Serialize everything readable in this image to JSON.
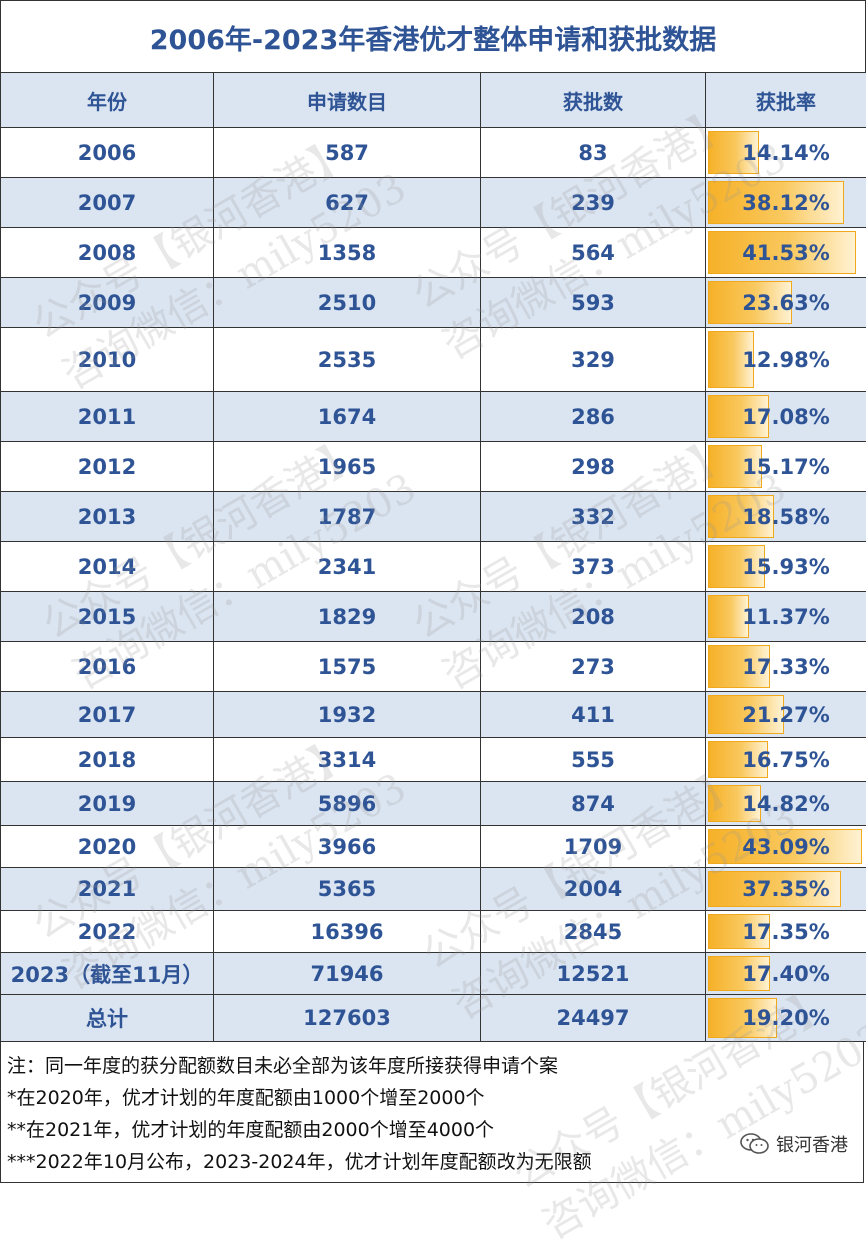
{
  "title": "2006年-2023年香港优才整体申请和获批数据",
  "headers": [
    "年份",
    "申请数目",
    "获批数",
    "获批率"
  ],
  "rows": [
    {
      "year": "2006",
      "applications": "587",
      "approved": "83",
      "rate": "14.14%",
      "rate_value": 14.14
    },
    {
      "year": "2007",
      "applications": "627",
      "approved": "239",
      "rate": "38.12%",
      "rate_value": 38.12
    },
    {
      "year": "2008",
      "applications": "1358",
      "approved": "564",
      "rate": "41.53%",
      "rate_value": 41.53
    },
    {
      "year": "2009",
      "applications": "2510",
      "approved": "593",
      "rate": "23.63%",
      "rate_value": 23.63
    },
    {
      "year": "2010",
      "applications": "2535",
      "approved": "329",
      "rate": "12.98%",
      "rate_value": 12.98
    },
    {
      "year": "2011",
      "applications": "1674",
      "approved": "286",
      "rate": "17.08%",
      "rate_value": 17.08
    },
    {
      "year": "2012",
      "applications": "1965",
      "approved": "298",
      "rate": "15.17%",
      "rate_value": 15.17
    },
    {
      "year": "2013",
      "applications": "1787",
      "approved": "332",
      "rate": "18.58%",
      "rate_value": 18.58
    },
    {
      "year": "2014",
      "applications": "2341",
      "approved": "373",
      "rate": "15.93%",
      "rate_value": 15.93
    },
    {
      "year": "2015",
      "applications": "1829",
      "approved": "208",
      "rate": "11.37%",
      "rate_value": 11.37
    },
    {
      "year": "2016",
      "applications": "1575",
      "approved": "273",
      "rate": "17.33%",
      "rate_value": 17.33
    },
    {
      "year": "2017",
      "applications": "1932",
      "approved": "411",
      "rate": "21.27%",
      "rate_value": 21.27
    },
    {
      "year": "2018",
      "applications": "3314",
      "approved": "555",
      "rate": "16.75%",
      "rate_value": 16.75
    },
    {
      "year": "2019",
      "applications": "5896",
      "approved": "874",
      "rate": "14.82%",
      "rate_value": 14.82
    },
    {
      "year": "2020",
      "applications": "3966",
      "approved": "1709",
      "rate": "43.09%",
      "rate_value": 43.09
    },
    {
      "year": "2021",
      "applications": "5365",
      "approved": "2004",
      "rate": "37.35%",
      "rate_value": 37.35
    },
    {
      "year": "2022",
      "applications": "16396",
      "approved": "2845",
      "rate": "17.35%",
      "rate_value": 17.35
    },
    {
      "year": "2023（截至11月）",
      "applications": "71946",
      "approved": "12521",
      "rate": "17.40%",
      "rate_value": 17.4
    },
    {
      "year": "总计",
      "applications": "127603",
      "approved": "24497",
      "rate": "19.20%",
      "rate_value": 19.2
    }
  ],
  "notes": [
    "注：同一年度的获分配额数目未必全部为该年度所接获得申请个案",
    "*在2020年，优才计划的年度配额由1000个增至2000个",
    "**在2021年，优才计划的年度配额由2000个增至4000个",
    "***2022年10月公布，2023-2024年，优才计划年度配额改为无限额"
  ],
  "watermark": {
    "lines": [
      "公众号【银河香港】",
      "咨询微信：mily5203"
    ],
    "color": "#969696"
  },
  "brand": {
    "icon": "wechat-icon",
    "label": "银河香港"
  },
  "colors": {
    "header_text": "#2f5496",
    "alt_row": "#dbe5f1",
    "bar": "#f6b128",
    "border": "#333333"
  }
}
